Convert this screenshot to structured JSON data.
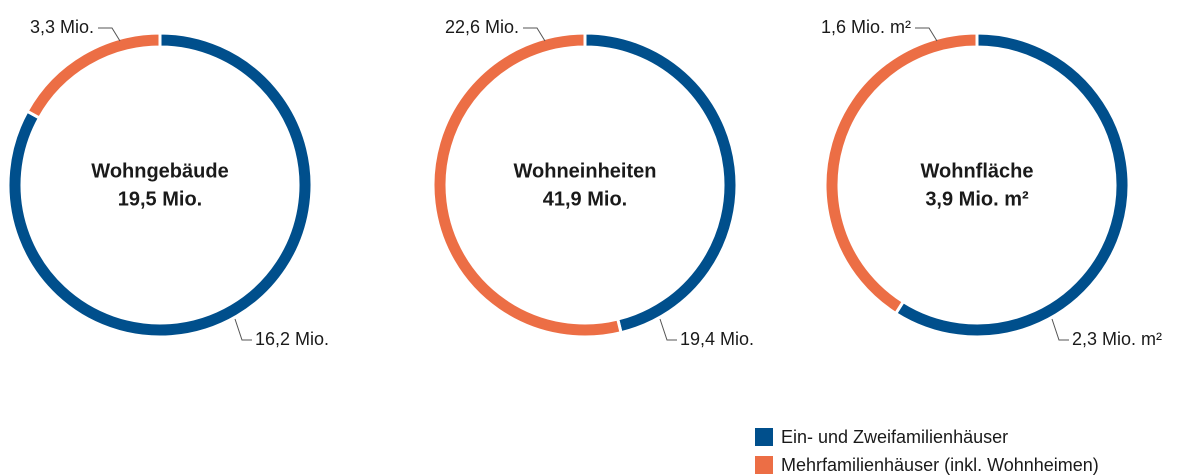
{
  "chart_data": [
    {
      "type": "donut",
      "title": "Wohngebäude",
      "total_label": "19,5 Mio.",
      "values": [
        16.2,
        3.3
      ],
      "value_labels": [
        "16,2 Mio.",
        "3,3 Mio."
      ]
    },
    {
      "type": "donut",
      "title": "Wohneinheiten",
      "total_label": "41,9 Mio.",
      "values": [
        19.4,
        22.6
      ],
      "value_labels": [
        "19,4 Mio.",
        "22,6 Mio."
      ]
    },
    {
      "type": "donut",
      "title": "Wohnfläche",
      "total_label": "3,9 Mio. m²",
      "values": [
        2.3,
        1.6
      ],
      "value_labels": [
        "2,3 Mio. m²",
        "1,6 Mio. m²"
      ]
    }
  ],
  "legend": {
    "items": [
      {
        "name": "Ein- und Zweifamilienhäuser",
        "color": "#004f8c"
      },
      {
        "name": "Mehrfamilienhäuser (inkl. Wohnheimen)",
        "color": "#ec6e45"
      }
    ]
  }
}
